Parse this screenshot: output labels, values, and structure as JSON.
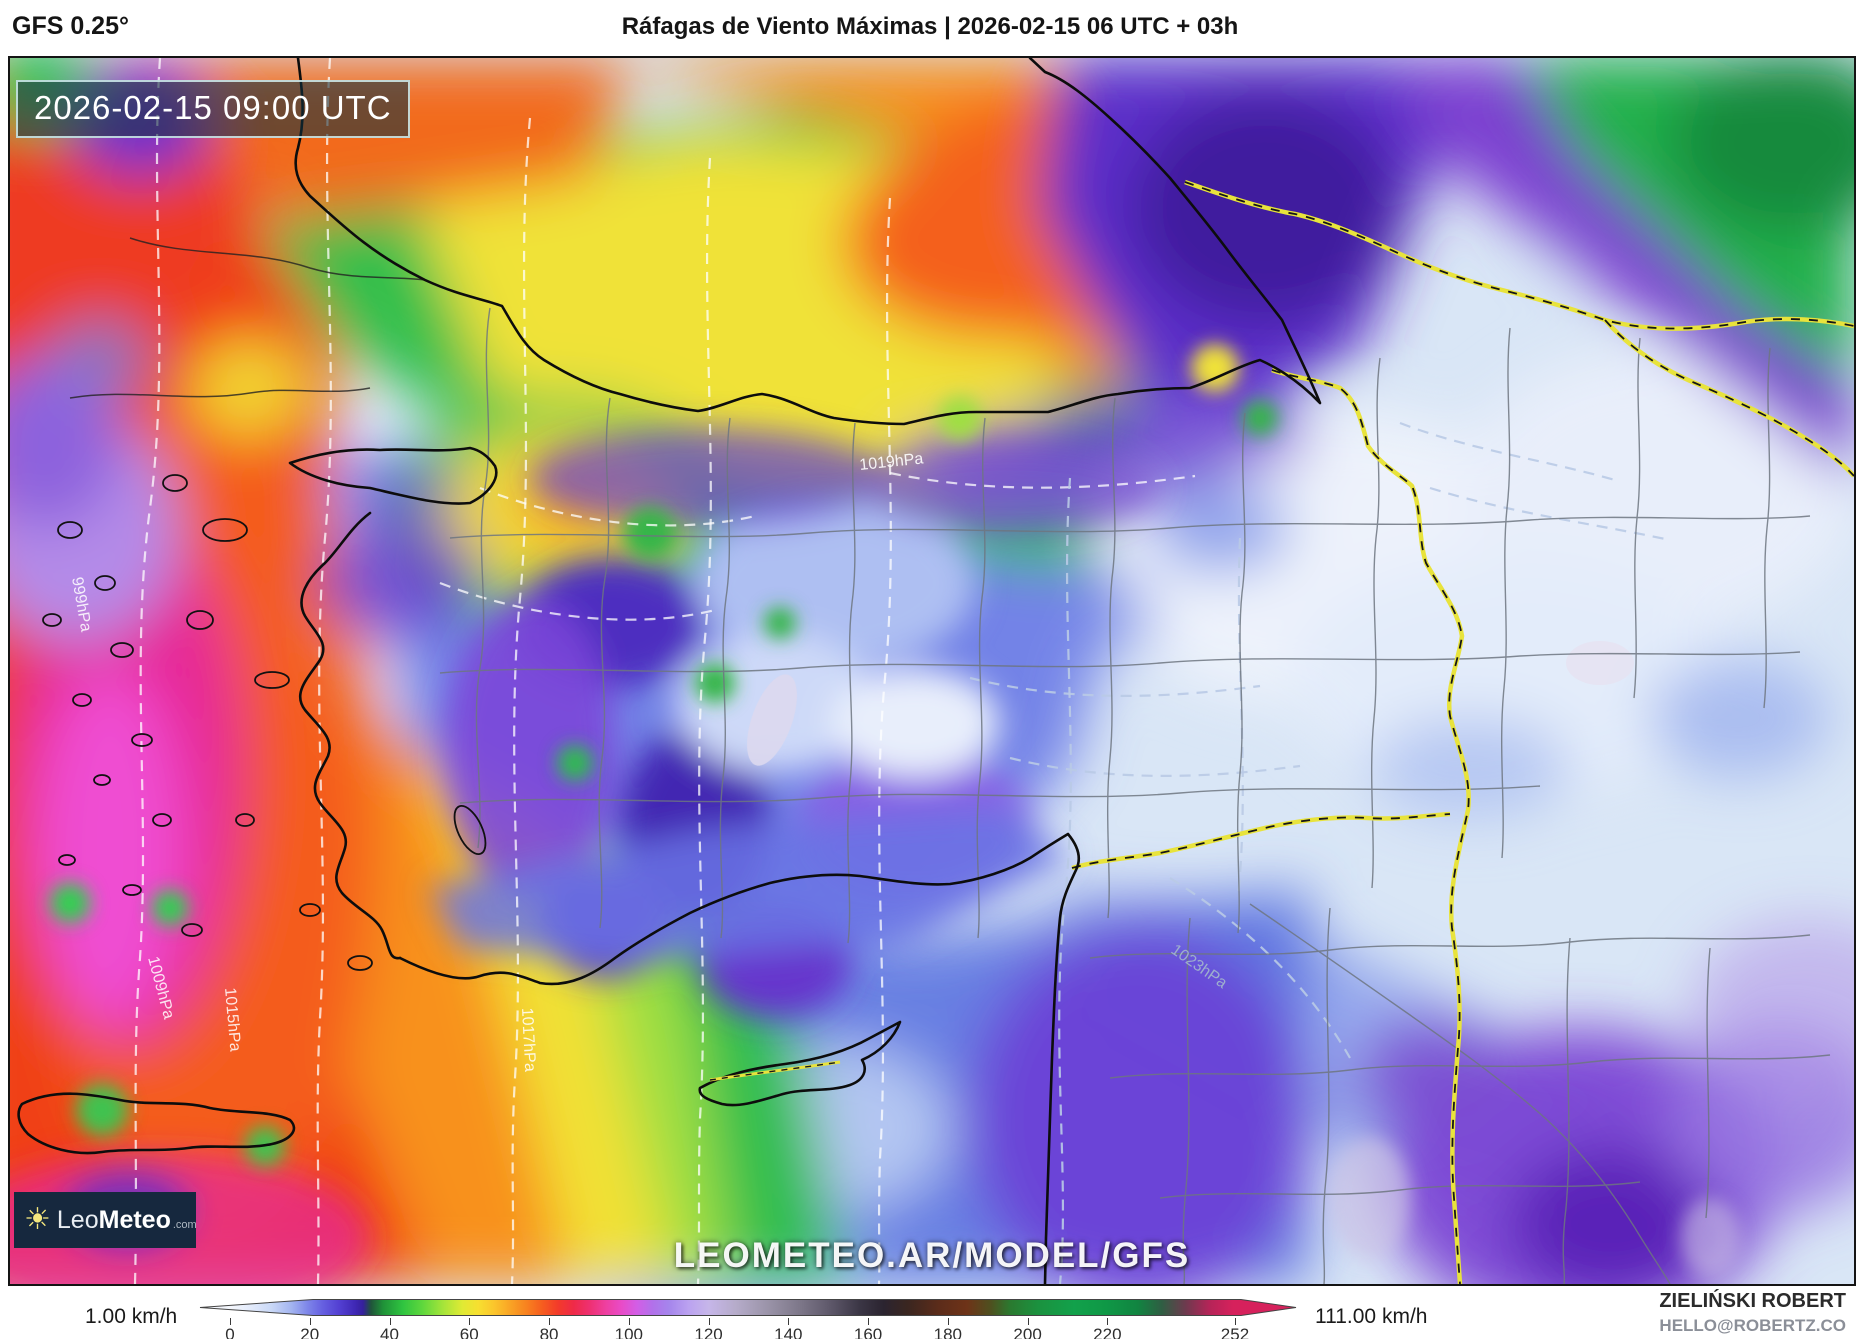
{
  "header": {
    "model": "GFS 0.25°",
    "title": "Ráfagas de Viento Máximas | 2026-02-15 06 UTC + 03h"
  },
  "map": {
    "timestamp": "2026-02-15 09:00 UTC",
    "watermark": "LEOMETEO.AR/MODEL/GFS",
    "logo": {
      "icon": "sun-icon",
      "name_light": "Leo",
      "name_bold": "Meteo",
      "suffix": ".com"
    },
    "isobar_labels": [
      "999hPa",
      "1009hPa",
      "1015hPa",
      "1017hPa",
      "1019hPa",
      "1023hPa"
    ]
  },
  "colorbar": {
    "unit": "km/h",
    "min_label": "1.00 km/h",
    "max_label": "111.00 km/h",
    "ticks": [
      "0",
      "20",
      "40",
      "60",
      "80",
      "100",
      "120",
      "140",
      "160",
      "180",
      "200",
      "220",
      "252"
    ],
    "tick_values": [
      0,
      20,
      40,
      60,
      80,
      100,
      120,
      140,
      160,
      180,
      200,
      220,
      252
    ],
    "stops": [
      {
        "v": 0,
        "c": "#f4f7fd"
      },
      {
        "v": 5,
        "c": "#e2eafb"
      },
      {
        "v": 10,
        "c": "#c9d8f7"
      },
      {
        "v": 15,
        "c": "#a3b4f0"
      },
      {
        "v": 19,
        "c": "#7e86e9"
      },
      {
        "v": 23,
        "c": "#655ee0"
      },
      {
        "v": 27,
        "c": "#5340d2"
      },
      {
        "v": 31,
        "c": "#3f28b5"
      },
      {
        "v": 33,
        "c": "#35209c"
      },
      {
        "v": 35,
        "c": "#20543a"
      },
      {
        "v": 38,
        "c": "#1f9138"
      },
      {
        "v": 43,
        "c": "#2fc440"
      },
      {
        "v": 48,
        "c": "#5fd73d"
      },
      {
        "v": 53,
        "c": "#a3e43a"
      },
      {
        "v": 58,
        "c": "#e0ea34"
      },
      {
        "v": 62,
        "c": "#f7df30"
      },
      {
        "v": 66,
        "c": "#fbc52c"
      },
      {
        "v": 70,
        "c": "#f9a425"
      },
      {
        "v": 74,
        "c": "#f8831f"
      },
      {
        "v": 78,
        "c": "#f65e1f"
      },
      {
        "v": 82,
        "c": "#f33b2a"
      },
      {
        "v": 86,
        "c": "#ef2a48"
      },
      {
        "v": 90,
        "c": "#ee3071"
      },
      {
        "v": 94,
        "c": "#ee3f9f"
      },
      {
        "v": 98,
        "c": "#e94bc7"
      },
      {
        "v": 102,
        "c": "#d25ee6"
      },
      {
        "v": 106,
        "c": "#b171ea"
      },
      {
        "v": 110,
        "c": "#a585ec"
      },
      {
        "v": 115,
        "c": "#bba2f0"
      },
      {
        "v": 120,
        "c": "#c6b6e9"
      },
      {
        "v": 127,
        "c": "#b5abc9"
      },
      {
        "v": 135,
        "c": "#9a93a8"
      },
      {
        "v": 143,
        "c": "#7d7789"
      },
      {
        "v": 151,
        "c": "#5c5668"
      },
      {
        "v": 158,
        "c": "#3b3645"
      },
      {
        "v": 164,
        "c": "#2b2430"
      },
      {
        "v": 170,
        "c": "#3a2620"
      },
      {
        "v": 178,
        "c": "#5c2c1a"
      },
      {
        "v": 185,
        "c": "#6e3318"
      },
      {
        "v": 191,
        "c": "#4e501f"
      },
      {
        "v": 196,
        "c": "#2a7a30"
      },
      {
        "v": 203,
        "c": "#1b923f"
      },
      {
        "v": 212,
        "c": "#12a14b"
      },
      {
        "v": 220,
        "c": "#0f9846"
      },
      {
        "v": 228,
        "c": "#118441"
      },
      {
        "v": 234,
        "c": "#2f5e43"
      },
      {
        "v": 240,
        "c": "#6d3a4e"
      },
      {
        "v": 246,
        "c": "#b52458"
      },
      {
        "v": 252,
        "c": "#d6215c"
      }
    ]
  },
  "credits": {
    "author": "ZIELIŃSKI ROBERT",
    "contact": "HELLO@ROBERTZ.CO"
  }
}
